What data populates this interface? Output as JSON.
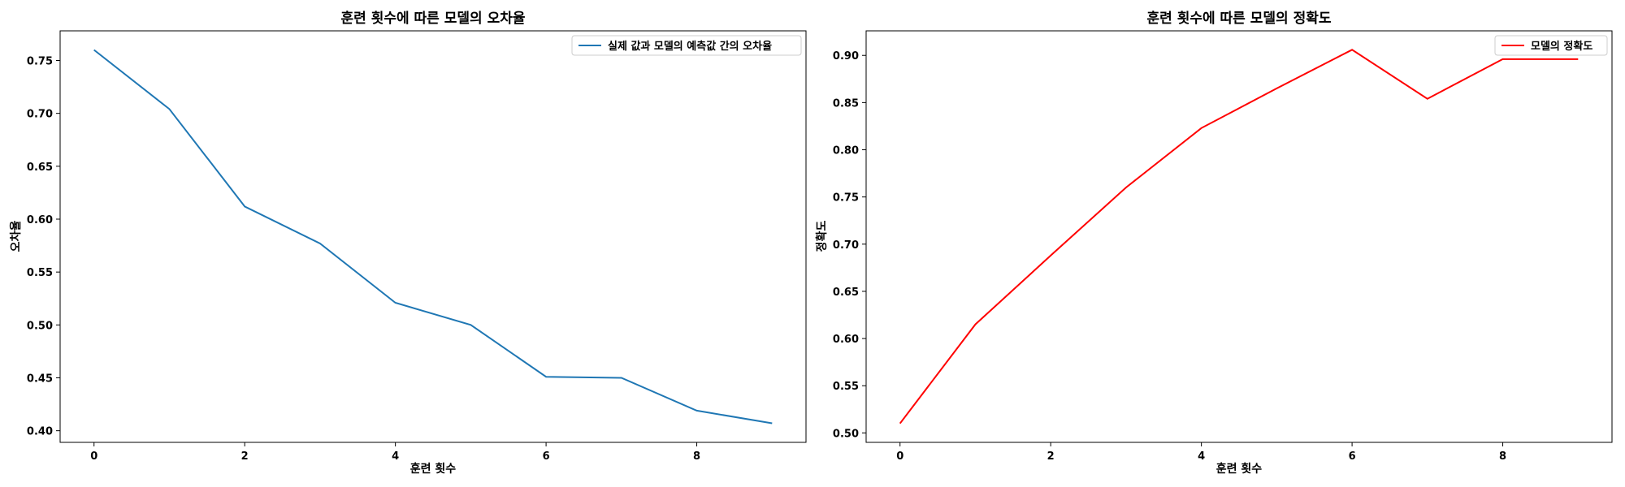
{
  "chart_data": [
    {
      "type": "line",
      "title": "훈련 횟수에 따른 모델의 오차율",
      "xlabel": "훈련 횟수",
      "ylabel": "오차율",
      "xlim": [
        -0.45,
        9.45
      ],
      "ylim": [
        0.389,
        0.778
      ],
      "xticks": [
        0,
        2,
        4,
        6,
        8
      ],
      "yticks": [
        0.4,
        0.45,
        0.5,
        0.55,
        0.6,
        0.65,
        0.7,
        0.75
      ],
      "grid": false,
      "legend_position": "top-right",
      "series": [
        {
          "name": "실제 값과 모델의 예측값 간의 오차율",
          "color": "#1f77b4",
          "x": [
            0,
            1,
            2,
            3,
            4,
            5,
            6,
            7,
            8,
            9
          ],
          "values": [
            0.76,
            0.704,
            0.612,
            0.577,
            0.521,
            0.5,
            0.451,
            0.45,
            0.419,
            0.407
          ]
        }
      ]
    },
    {
      "type": "line",
      "title": "훈련 횟수에 따른 모델의 정확도",
      "xlabel": "훈련 횟수",
      "ylabel": "정확도",
      "xlim": [
        -0.45,
        9.45
      ],
      "ylim": [
        0.49,
        0.926
      ],
      "xticks": [
        0,
        2,
        4,
        6,
        8
      ],
      "yticks": [
        0.5,
        0.55,
        0.6,
        0.65,
        0.7,
        0.75,
        0.8,
        0.85,
        0.9
      ],
      "grid": false,
      "legend_position": "top-right",
      "series": [
        {
          "name": "모델의 정확도",
          "color": "#ff0000",
          "x": [
            0,
            1,
            2,
            3,
            4,
            5,
            6,
            7,
            8,
            9
          ],
          "values": [
            0.51,
            0.615,
            0.688,
            0.76,
            0.823,
            0.865,
            0.906,
            0.854,
            0.896,
            0.896
          ]
        }
      ]
    }
  ]
}
